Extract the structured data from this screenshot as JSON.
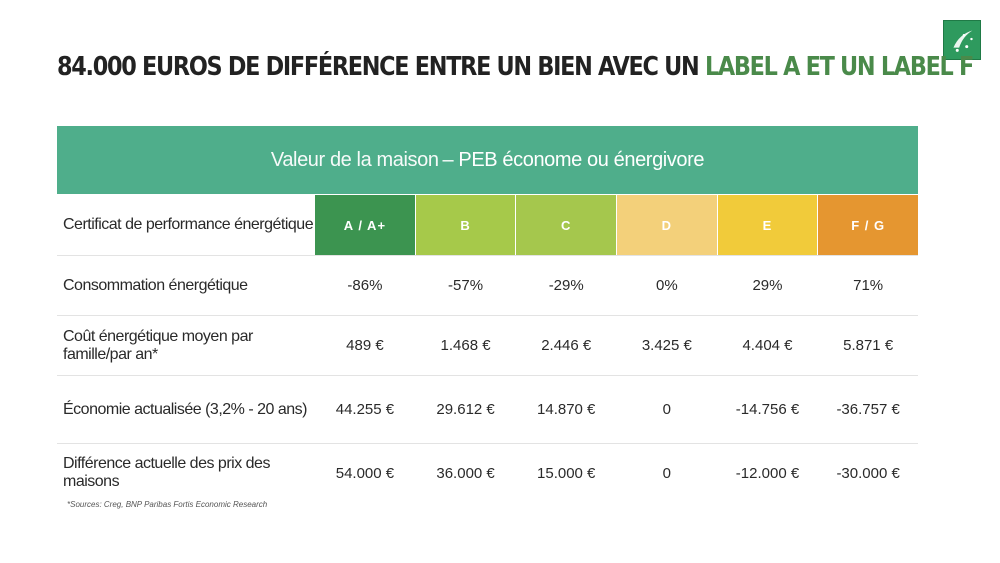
{
  "title": {
    "dark": "84.000 EUROS DE DIFFÉRENCE ENTRE UN BIEN AVEC UN",
    "green": "LABEL A ET UN LABEL F"
  },
  "banner": {
    "light": "Valeur de la maison",
    "strong": "– PEB économe ou énergivore"
  },
  "colors": {
    "banner": "#4fae8b",
    "title_green": "#4a8a4a"
  },
  "grades": {
    "label": "Certificat de performance énergétique",
    "items": [
      {
        "label": "A / A+",
        "color": "#3c9450"
      },
      {
        "label": "B",
        "color": "#a6c94a"
      },
      {
        "label": "C",
        "color": "#a5c74d"
      },
      {
        "label": "D",
        "color": "#f3d07a"
      },
      {
        "label": "E",
        "color": "#f1cb3a"
      },
      {
        "label": "F / G",
        "color": "#e59630"
      }
    ]
  },
  "rows": [
    {
      "label": "Consommation énergétique",
      "values": [
        "-86%",
        "-57%",
        "-29%",
        "0%",
        "29%",
        "71%"
      ]
    },
    {
      "label": "Coût énergétique moyen par famille/par an*",
      "values": [
        "489 €",
        "1.468 €",
        "2.446 €",
        "3.425 €",
        "4.404 €",
        "5.871 €"
      ]
    },
    {
      "label": "Économie actualisée (3,2% - 20 ans)",
      "values": [
        "44.255 €",
        "29.612 €",
        "14.870 €",
        "0",
        "-14.756 €",
        "-36.757 €"
      ]
    },
    {
      "label": "Différence actuelle des prix des maisons",
      "values": [
        "54.000 €",
        "36.000 €",
        "15.000 €",
        "0",
        "-12.000 €",
        "-30.000 €"
      ]
    }
  ],
  "source": "*Sources: Creg, BNP Paribas Fortis Economic Research"
}
